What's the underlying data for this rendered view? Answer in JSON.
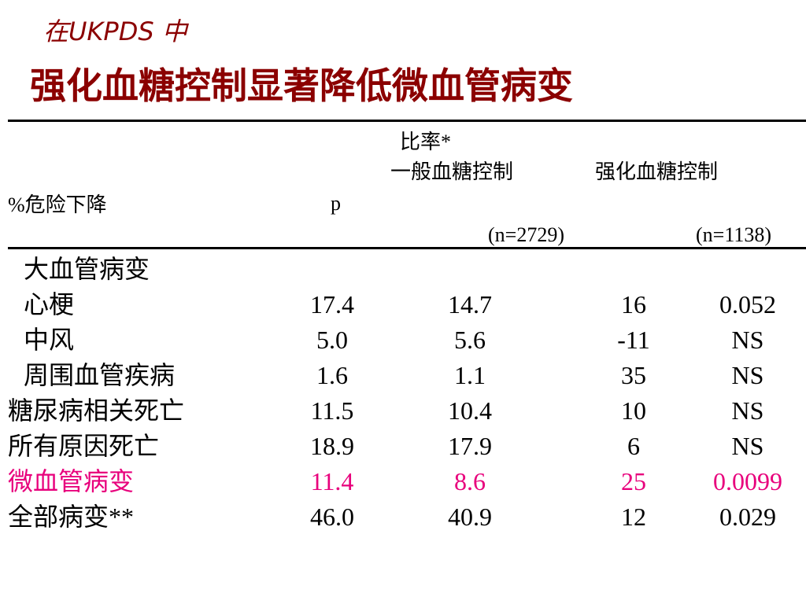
{
  "header": {
    "title_line1": "在UKPDS 中",
    "title_line2": "强化血糖控制显著降低微血管病变"
  },
  "table": {
    "columns": {
      "ratio": "比率*",
      "conventional": "一般血糖控制",
      "intensive": "强化血糖控制",
      "risk_reduction": "%危险下降",
      "p": "p",
      "n_conventional": "(n=2729)",
      "n_intensive": "(n=1138)"
    },
    "rows": [
      {
        "label": "大血管病变",
        "indent": true,
        "cells": []
      },
      {
        "label": "心梗",
        "indent": true,
        "cells": [
          "17.4",
          "14.7",
          "16",
          "0.052"
        ]
      },
      {
        "label": "中风",
        "indent": true,
        "cells": [
          "5.0",
          "5.6",
          "-11",
          "NS"
        ]
      },
      {
        "label": "周围血管疾病",
        "indent": true,
        "cells": [
          "1.6",
          "1.1",
          "35",
          "NS"
        ]
      },
      {
        "label": "糖尿病相关死亡",
        "cells": [
          "11.5",
          "10.4",
          "10",
          "NS"
        ]
      },
      {
        "label": "所有原因死亡",
        "cells": [
          "18.9",
          "17.9",
          "6",
          "NS"
        ]
      },
      {
        "label": "微血管病变",
        "color": "#e8007c",
        "cells": [
          "11.4",
          "8.6",
          "25",
          "0.0099"
        ]
      },
      {
        "label": "全部病变**",
        "cells": [
          "46.0",
          "40.9",
          "12",
          "0.029"
        ]
      }
    ]
  }
}
